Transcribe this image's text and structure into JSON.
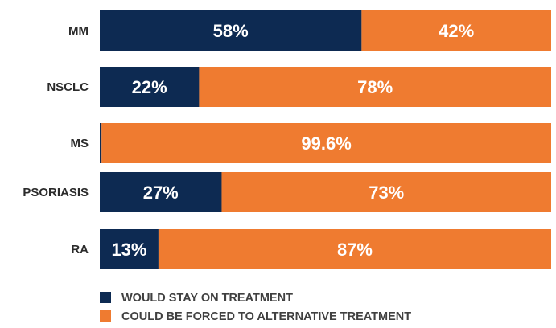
{
  "chart_data": {
    "type": "bar",
    "orientation": "horizontal",
    "stacked": true,
    "categories": [
      "MM",
      "NSCLC",
      "MS",
      "PSORIASIS",
      "RA"
    ],
    "series": [
      {
        "name": "WOULD STAY ON TREATMENT",
        "color": "#0d2a52",
        "values": [
          58,
          22,
          0.4,
          27,
          13
        ],
        "labels": [
          "58%",
          "22%",
          "",
          "27%",
          "13%"
        ]
      },
      {
        "name": "COULD BE FORCED TO ALTERNATIVE TREATMENT",
        "color": "#ef7b30",
        "values": [
          42,
          78,
          99.6,
          73,
          87
        ],
        "labels": [
          "42%",
          "78%",
          "99.6%",
          "73%",
          "87%"
        ]
      }
    ],
    "xlim": [
      0,
      100
    ],
    "grid": false,
    "legend_position": "bottom"
  }
}
